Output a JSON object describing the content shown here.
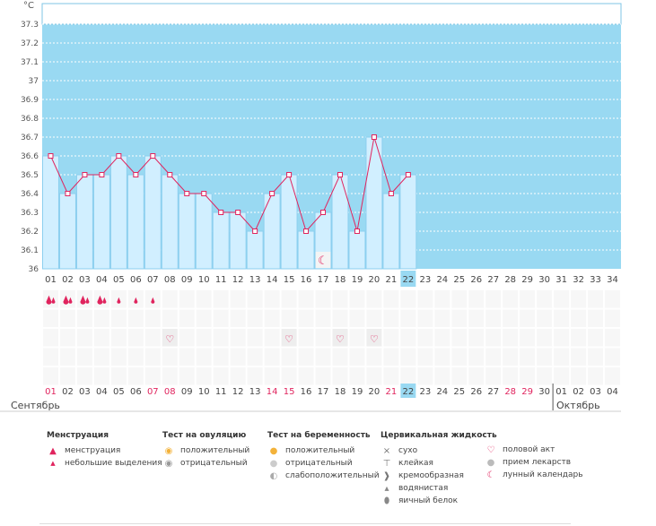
{
  "chart_data": {
    "type": "line",
    "title": "",
    "ylabel": "°C",
    "ylim": [
      36,
      37.3
    ],
    "yticks": [
      "36",
      "36.1",
      "36.2",
      "36.3",
      "36.4",
      "36.5",
      "36.6",
      "36.7",
      "36.8",
      "36.9",
      "37",
      "37.1",
      "37.2",
      "37.3"
    ],
    "cycle_days": [
      "01",
      "02",
      "03",
      "04",
      "05",
      "06",
      "07",
      "08",
      "09",
      "10",
      "11",
      "12",
      "13",
      "14",
      "15",
      "16",
      "17",
      "18",
      "19",
      "20",
      "21",
      "22",
      "23",
      "24",
      "25",
      "26",
      "27",
      "28",
      "29",
      "30",
      "31",
      "32",
      "33",
      "34"
    ],
    "current_day_index": 22,
    "series": [
      {
        "name": "temperature",
        "values": [
          36.6,
          36.4,
          36.5,
          36.5,
          36.6,
          36.5,
          36.6,
          36.5,
          36.4,
          36.4,
          36.3,
          36.3,
          36.2,
          36.4,
          36.5,
          36.2,
          36.3,
          36.5,
          36.2,
          36.7,
          36.4,
          36.5
        ]
      }
    ],
    "calendar_dates": [
      "01",
      "02",
      "03",
      "04",
      "05",
      "06",
      "07",
      "08",
      "09",
      "10",
      "11",
      "12",
      "13",
      "14",
      "15",
      "16",
      "17",
      "18",
      "19",
      "20",
      "21",
      "22",
      "23",
      "24",
      "25",
      "26",
      "27",
      "28",
      "29",
      "30",
      "01",
      "02",
      "03",
      "04"
    ],
    "weekend_days": [
      1,
      7,
      8,
      14,
      15,
      21,
      28,
      29
    ],
    "menstruation": [
      "heavy",
      "heavy",
      "heavy",
      "heavy",
      "light",
      "light",
      "light"
    ],
    "intercourse_days": [
      8,
      15,
      18,
      20
    ],
    "moon_day": 17,
    "months": {
      "first": "Сентябрь",
      "second": "Октябрь"
    }
  },
  "legend": {
    "menstruation": {
      "title": "Менструация",
      "items": [
        "менструация",
        "небольшие выделения"
      ]
    },
    "ovulation": {
      "title": "Тест на овуляцию",
      "items": [
        "положительный",
        "отрицательный"
      ]
    },
    "pregnancy": {
      "title": "Тест на беременность",
      "items": [
        "положительный",
        "отрицательный",
        "слабоположительный"
      ]
    },
    "cervical": {
      "title": "Цервикальная жидкость",
      "items": [
        "сухо",
        "клейкая",
        "кремообразная",
        "водянистая",
        "яичный белок"
      ]
    },
    "other": {
      "items": [
        "половой акт",
        "прием лекарств",
        "лунный календарь"
      ]
    }
  },
  "colors": {
    "chart_bg": "#99d9f2",
    "bar_fill": "#d1efff",
    "bar_stroke": "#8ccfef",
    "line": "#e0245e",
    "accent": "#e0245e",
    "today_bg": "#99d9f2"
  }
}
